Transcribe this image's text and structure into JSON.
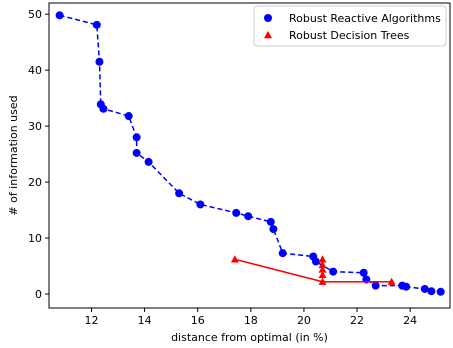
{
  "chart_data": {
    "type": "scatter",
    "xlabel": "distance from optimal (in %)",
    "ylabel": "# of information used",
    "xlim": [
      10.4,
      25.5
    ],
    "ylim": [
      -2.5,
      52
    ],
    "xticks": [
      12,
      14,
      16,
      18,
      20,
      22,
      24
    ],
    "yticks": [
      0,
      10,
      20,
      30,
      40,
      50
    ],
    "grid": false,
    "legend_position": "top-right",
    "series": [
      {
        "name": "Robust Reactive Algorithms",
        "color": "#0000ff",
        "marker": "circle",
        "line": "dashed",
        "x": [
          10.8,
          12.2,
          12.3,
          12.35,
          12.45,
          13.4,
          13.7,
          13.7,
          14.15,
          15.3,
          16.1,
          17.45,
          17.9,
          18.75,
          18.85,
          19.2,
          20.35,
          20.45,
          21.1,
          22.25,
          22.35,
          22.7,
          23.7,
          23.85,
          24.55,
          24.8,
          25.15
        ],
        "y": [
          49.8,
          48.1,
          41.5,
          33.9,
          33.1,
          31.8,
          28,
          25.2,
          23.6,
          18,
          16,
          14.5,
          13.9,
          12.9,
          11.6,
          7.3,
          6.7,
          5.8,
          4,
          3.8,
          2.6,
          1.5,
          1.5,
          1.3,
          0.9,
          0.5,
          0.4
        ]
      },
      {
        "name": "Robust Decision Trees",
        "color": "#ff0000",
        "marker": "triangle",
        "line": "solid",
        "x": [
          17.4,
          20.7,
          20.7,
          20.7,
          20.7,
          20.7,
          23.3
        ],
        "y": [
          6.2,
          6.2,
          5.2,
          4.4,
          3.4,
          2.2,
          2.2
        ],
        "line_x": [
          17.4,
          20.7,
          23.3
        ],
        "line_y": [
          6.2,
          2.2,
          2.2
        ]
      }
    ]
  }
}
